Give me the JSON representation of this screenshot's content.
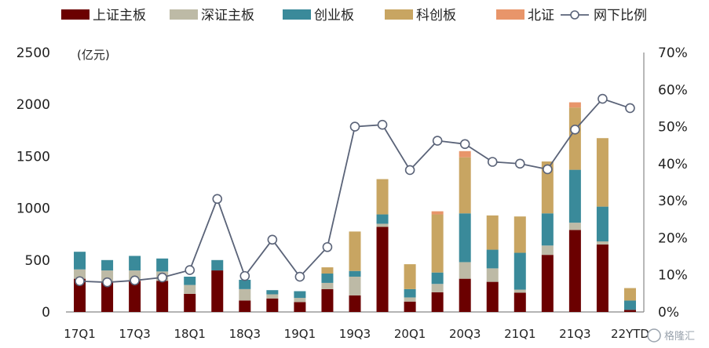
{
  "chart_data": {
    "type": "bar",
    "stacked": true,
    "y_unit_label": "(亿元)",
    "categories": [
      "17Q1",
      "17Q2",
      "17Q3",
      "17Q4",
      "18Q1",
      "18Q2",
      "18Q3",
      "18Q4",
      "19Q1",
      "19Q2",
      "19Q3",
      "19Q4",
      "20Q1",
      "20Q2",
      "20Q3",
      "20Q4",
      "21Q1",
      "21Q2",
      "21Q3",
      "21Q4",
      "22YTD"
    ],
    "x_tick_labels": [
      "17Q1",
      "",
      "17Q3",
      "",
      "18Q1",
      "",
      "18Q3",
      "",
      "19Q1",
      "",
      "19Q3",
      "",
      "20Q1",
      "",
      "20Q3",
      "",
      "21Q1",
      "",
      "21Q3",
      "",
      "22YTD"
    ],
    "ylim": [
      0,
      2500
    ],
    "yticks": [
      0,
      500,
      1000,
      1500,
      2000,
      2500
    ],
    "y2lim": [
      0,
      0.7
    ],
    "y2ticks": [
      "0%",
      "10%",
      "20%",
      "30%",
      "40%",
      "50%",
      "60%",
      "70%"
    ],
    "series": [
      {
        "name": "上证主板",
        "color": "#6b0000",
        "values": [
          320,
          290,
          300,
          300,
          175,
          400,
          110,
          130,
          95,
          220,
          160,
          820,
          100,
          190,
          320,
          290,
          185,
          550,
          790,
          650,
          20
        ]
      },
      {
        "name": "深证主板",
        "color": "#bdbaa6",
        "values": [
          90,
          110,
          100,
          90,
          85,
          0,
          110,
          40,
          40,
          60,
          180,
          30,
          40,
          80,
          160,
          130,
          30,
          90,
          70,
          30,
          0
        ]
      },
      {
        "name": "创业板",
        "color": "#3a8a9a",
        "values": [
          170,
          100,
          140,
          125,
          80,
          100,
          90,
          40,
          65,
          90,
          55,
          90,
          80,
          110,
          470,
          180,
          355,
          310,
          510,
          335,
          90
        ]
      },
      {
        "name": "科创板",
        "color": "#c8a562",
        "values": [
          0,
          0,
          0,
          0,
          0,
          0,
          0,
          0,
          0,
          60,
          380,
          340,
          240,
          560,
          540,
          330,
          350,
          500,
          600,
          660,
          120
        ]
      },
      {
        "name": "北证",
        "color": "#e8956a",
        "values": [
          0,
          0,
          0,
          0,
          0,
          0,
          0,
          0,
          0,
          0,
          0,
          0,
          0,
          30,
          60,
          0,
          0,
          0,
          50,
          0,
          0
        ]
      }
    ],
    "line_series": {
      "name": "网下比例",
      "axis": "right",
      "color": "#5a6378",
      "values": [
        0.083,
        0.08,
        0.085,
        0.093,
        0.113,
        0.305,
        0.097,
        0.195,
        0.095,
        0.175,
        0.5,
        0.505,
        0.383,
        0.462,
        0.453,
        0.405,
        0.4,
        0.385,
        0.492,
        0.575,
        0.55
      ]
    },
    "legend_position": "top",
    "grid": false
  },
  "watermark": "格隆汇"
}
